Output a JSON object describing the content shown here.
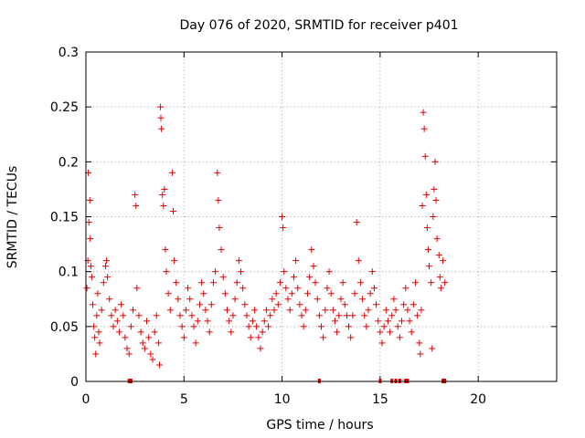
{
  "chart_data": {
    "type": "scatter",
    "title": "Day 076 of 2020, SRMTID for receiver p401",
    "xlabel": "GPS time / hours",
    "ylabel": "SRMTID / TECUs",
    "xlim": [
      0,
      24
    ],
    "ylim": [
      0,
      0.3
    ],
    "xticks": [
      0,
      5,
      10,
      15,
      20
    ],
    "xtick_labels": [
      "0",
      "5",
      "10",
      "15",
      "20"
    ],
    "yticks": [
      0,
      0.05,
      0.1,
      0.15,
      0.2,
      0.25,
      0.3
    ],
    "ytick_labels": [
      "0",
      "0.05",
      "0.1",
      "0.15",
      "0.2",
      "0.25",
      "0.3"
    ],
    "grid": true,
    "marker": "+",
    "color": "#e00000",
    "series": [
      {
        "name": "SRMTID",
        "points": [
          [
            0.05,
            0.085
          ],
          [
            0.1,
            0.11
          ],
          [
            0.12,
            0.19
          ],
          [
            0.15,
            0.145
          ],
          [
            0.2,
            0.165
          ],
          [
            0.22,
            0.13
          ],
          [
            0.25,
            0.105
          ],
          [
            0.3,
            0.095
          ],
          [
            0.35,
            0.07
          ],
          [
            0.4,
            0.05
          ],
          [
            0.45,
            0.04
          ],
          [
            0.5,
            0.025
          ],
          [
            0.55,
            0.06
          ],
          [
            0.6,
            0.08
          ],
          [
            0.65,
            0.045
          ],
          [
            0.7,
            0.035
          ],
          [
            0.8,
            0.065
          ],
          [
            0.9,
            0.09
          ],
          [
            1.0,
            0.105
          ],
          [
            1.05,
            0.11
          ],
          [
            1.1,
            0.095
          ],
          [
            1.2,
            0.075
          ],
          [
            1.3,
            0.06
          ],
          [
            1.4,
            0.05
          ],
          [
            1.5,
            0.065
          ],
          [
            1.6,
            0.055
          ],
          [
            1.7,
            0.045
          ],
          [
            1.8,
            0.07
          ],
          [
            1.9,
            0.06
          ],
          [
            2.0,
            0.04
          ],
          [
            2.1,
            0.03
          ],
          [
            2.2,
            0.025
          ],
          [
            2.3,
            0.05
          ],
          [
            2.4,
            0.065
          ],
          [
            2.5,
            0.17
          ],
          [
            2.55,
            0.16
          ],
          [
            2.6,
            0.085
          ],
          [
            2.7,
            0.06
          ],
          [
            2.8,
            0.045
          ],
          [
            2.9,
            0.035
          ],
          [
            3.0,
            0.03
          ],
          [
            3.1,
            0.055
          ],
          [
            3.2,
            0.04
          ],
          [
            3.3,
            0.025
          ],
          [
            3.4,
            0.02
          ],
          [
            3.5,
            0.045
          ],
          [
            3.6,
            0.06
          ],
          [
            3.7,
            0.035
          ],
          [
            3.75,
            0.015
          ],
          [
            3.8,
            0.25
          ],
          [
            3.82,
            0.24
          ],
          [
            3.85,
            0.23
          ],
          [
            3.9,
            0.17
          ],
          [
            3.95,
            0.16
          ],
          [
            4.0,
            0.175
          ],
          [
            4.05,
            0.12
          ],
          [
            4.1,
            0.1
          ],
          [
            4.2,
            0.08
          ],
          [
            4.3,
            0.065
          ],
          [
            4.4,
            0.19
          ],
          [
            4.45,
            0.155
          ],
          [
            4.5,
            0.11
          ],
          [
            4.6,
            0.09
          ],
          [
            4.7,
            0.075
          ],
          [
            4.8,
            0.06
          ],
          [
            4.9,
            0.05
          ],
          [
            5.0,
            0.04
          ],
          [
            5.1,
            0.065
          ],
          [
            5.2,
            0.085
          ],
          [
            5.3,
            0.075
          ],
          [
            5.4,
            0.06
          ],
          [
            5.5,
            0.05
          ],
          [
            5.6,
            0.035
          ],
          [
            5.7,
            0.055
          ],
          [
            5.8,
            0.07
          ],
          [
            5.9,
            0.09
          ],
          [
            6.0,
            0.08
          ],
          [
            6.1,
            0.065
          ],
          [
            6.2,
            0.055
          ],
          [
            6.3,
            0.045
          ],
          [
            6.4,
            0.07
          ],
          [
            6.5,
            0.09
          ],
          [
            6.6,
            0.1
          ],
          [
            6.7,
            0.19
          ],
          [
            6.75,
            0.165
          ],
          [
            6.8,
            0.14
          ],
          [
            6.9,
            0.12
          ],
          [
            7.0,
            0.095
          ],
          [
            7.1,
            0.08
          ],
          [
            7.2,
            0.065
          ],
          [
            7.3,
            0.055
          ],
          [
            7.4,
            0.045
          ],
          [
            7.5,
            0.06
          ],
          [
            7.6,
            0.075
          ],
          [
            7.7,
            0.09
          ],
          [
            7.8,
            0.11
          ],
          [
            7.9,
            0.1
          ],
          [
            8.0,
            0.085
          ],
          [
            8.1,
            0.07
          ],
          [
            8.2,
            0.06
          ],
          [
            8.3,
            0.05
          ],
          [
            8.4,
            0.04
          ],
          [
            8.5,
            0.055
          ],
          [
            8.6,
            0.065
          ],
          [
            8.7,
            0.05
          ],
          [
            8.8,
            0.04
          ],
          [
            8.9,
            0.03
          ],
          [
            9.0,
            0.045
          ],
          [
            9.1,
            0.055
          ],
          [
            9.2,
            0.065
          ],
          [
            9.3,
            0.05
          ],
          [
            9.4,
            0.06
          ],
          [
            9.5,
            0.075
          ],
          [
            9.6,
            0.065
          ],
          [
            9.7,
            0.08
          ],
          [
            9.8,
            0.07
          ],
          [
            9.9,
            0.09
          ],
          [
            10.0,
            0.15
          ],
          [
            10.05,
            0.14
          ],
          [
            10.1,
            0.1
          ],
          [
            10.2,
            0.085
          ],
          [
            10.3,
            0.075
          ],
          [
            10.4,
            0.065
          ],
          [
            10.5,
            0.08
          ],
          [
            10.6,
            0.095
          ],
          [
            10.7,
            0.11
          ],
          [
            10.8,
            0.085
          ],
          [
            10.9,
            0.07
          ],
          [
            11.0,
            0.06
          ],
          [
            11.1,
            0.05
          ],
          [
            11.2,
            0.065
          ],
          [
            11.3,
            0.08
          ],
          [
            11.4,
            0.095
          ],
          [
            11.5,
            0.12
          ],
          [
            11.6,
            0.105
          ],
          [
            11.7,
            0.09
          ],
          [
            11.8,
            0.075
          ],
          [
            11.9,
            0.06
          ],
          [
            12.0,
            0.05
          ],
          [
            12.1,
            0.04
          ],
          [
            12.2,
            0.065
          ],
          [
            12.3,
            0.085
          ],
          [
            12.4,
            0.1
          ],
          [
            12.5,
            0.08
          ],
          [
            12.6,
            0.065
          ],
          [
            12.7,
            0.055
          ],
          [
            12.8,
            0.045
          ],
          [
            12.9,
            0.06
          ],
          [
            13.0,
            0.075
          ],
          [
            13.1,
            0.09
          ],
          [
            13.2,
            0.07
          ],
          [
            13.3,
            0.06
          ],
          [
            13.4,
            0.05
          ],
          [
            13.5,
            0.04
          ],
          [
            13.6,
            0.06
          ],
          [
            13.7,
            0.08
          ],
          [
            13.8,
            0.145
          ],
          [
            13.9,
            0.11
          ],
          [
            14.0,
            0.09
          ],
          [
            14.1,
            0.075
          ],
          [
            14.2,
            0.06
          ],
          [
            14.3,
            0.05
          ],
          [
            14.4,
            0.065
          ],
          [
            14.5,
            0.08
          ],
          [
            14.6,
            0.1
          ],
          [
            14.7,
            0.085
          ],
          [
            14.8,
            0.07
          ],
          [
            14.9,
            0.055
          ],
          [
            15.0,
            0.045
          ],
          [
            15.1,
            0.035
          ],
          [
            15.2,
            0.05
          ],
          [
            15.3,
            0.065
          ],
          [
            15.4,
            0.055
          ],
          [
            15.5,
            0.045
          ],
          [
            15.6,
            0.06
          ],
          [
            15.7,
            0.075
          ],
          [
            15.8,
            0.065
          ],
          [
            15.9,
            0.05
          ],
          [
            16.0,
            0.04
          ],
          [
            16.1,
            0.055
          ],
          [
            16.2,
            0.07
          ],
          [
            16.3,
            0.085
          ],
          [
            16.4,
            0.065
          ],
          [
            16.5,
            0.055
          ],
          [
            16.6,
            0.045
          ],
          [
            16.7,
            0.07
          ],
          [
            16.8,
            0.09
          ],
          [
            16.9,
            0.06
          ],
          [
            17.0,
            0.035
          ],
          [
            17.05,
            0.025
          ],
          [
            17.1,
            0.065
          ],
          [
            17.15,
            0.16
          ],
          [
            17.2,
            0.245
          ],
          [
            17.25,
            0.23
          ],
          [
            17.3,
            0.205
          ],
          [
            17.35,
            0.17
          ],
          [
            17.4,
            0.14
          ],
          [
            17.45,
            0.12
          ],
          [
            17.5,
            0.105
          ],
          [
            17.6,
            0.09
          ],
          [
            17.65,
            0.03
          ],
          [
            17.7,
            0.15
          ],
          [
            17.75,
            0.175
          ],
          [
            17.8,
            0.2
          ],
          [
            17.85,
            0.165
          ],
          [
            17.9,
            0.13
          ],
          [
            18.0,
            0.115
          ],
          [
            18.05,
            0.095
          ],
          [
            18.1,
            0.085
          ],
          [
            18.2,
            0.11
          ],
          [
            18.3,
            0.09
          ]
        ]
      }
    ],
    "zero_markers": [
      2.2,
      2.3,
      11.9,
      15.0,
      15.6,
      15.8,
      16.0,
      16.3,
      16.4,
      18.2,
      18.3
    ]
  }
}
